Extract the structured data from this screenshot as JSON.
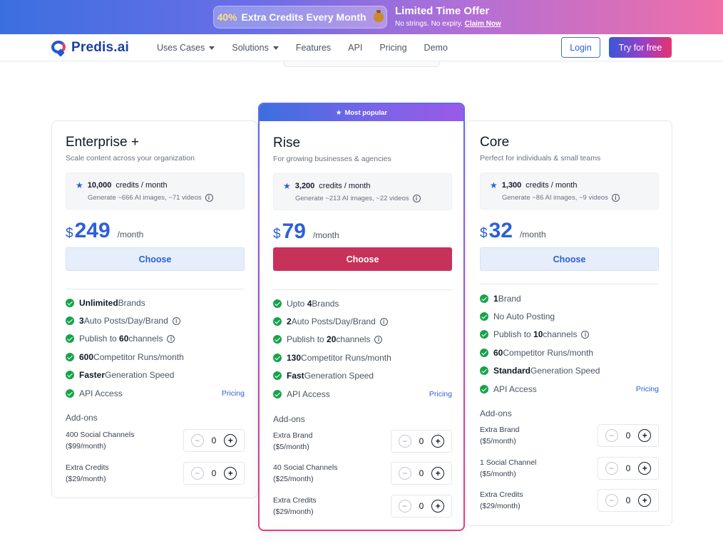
{
  "promo": {
    "highlight": "40%",
    "offer": "Extra Credits  Every Month",
    "title": "Limited Time Offer",
    "subtitle": "No strings. No expiry.",
    "cta": "Claim Now"
  },
  "nav": {
    "brand": "Predis.ai",
    "links": [
      "Uses Cases",
      "Solutions",
      "Features",
      "API",
      "Pricing",
      "Demo"
    ],
    "login": "Login",
    "try": "Try for free"
  },
  "plans": [
    {
      "name": "Enterprise +",
      "desc": "Scale content across your organization",
      "credits": "10,000",
      "credits_unit": "credits / month",
      "credits_sub": "Generate ~666 AI images, ~71 videos",
      "currency": "$",
      "price": "249",
      "per": "/month",
      "choose": "Choose",
      "features": [
        {
          "bold": "Unlimited",
          "rest": " Brands"
        },
        {
          "bold": "3",
          "rest": " Auto Posts/Day/Brand"
        },
        {
          "pre": "Publish to ",
          "bold": "60",
          "rest": " channels"
        },
        {
          "bold": "600",
          "rest": " Competitor Runs/month"
        },
        {
          "bold": "Faster",
          "rest": " Generation Speed"
        },
        {
          "pre": "API Access",
          "link": "Pricing"
        }
      ],
      "addons_title": "Add-ons",
      "addons": [
        {
          "label": "400 Social Channels",
          "price": "($99/month)",
          "value": "0"
        },
        {
          "label": "Extra Credits",
          "price": "($29/month)",
          "value": "0"
        }
      ]
    },
    {
      "badge": "Most popular",
      "name": "Rise",
      "desc": "For growing businesses & agencies",
      "credits": "3,200",
      "credits_unit": "credits / month",
      "credits_sub": "Generate ~213 AI images, ~22 videos",
      "currency": "$",
      "price": "79",
      "per": "/month",
      "choose": "Choose",
      "features": [
        {
          "pre": "Upto ",
          "bold": "4",
          "rest": " Brands"
        },
        {
          "bold": "2",
          "rest": " Auto Posts/Day/Brand"
        },
        {
          "pre": "Publish to ",
          "bold": "20",
          "rest": " channels"
        },
        {
          "bold": "130",
          "rest": " Competitor Runs/month"
        },
        {
          "bold": "Fast",
          "rest": " Generation Speed"
        },
        {
          "pre": "API Access",
          "link": "Pricing"
        }
      ],
      "addons_title": "Add-ons",
      "addons": [
        {
          "label": "Extra Brand",
          "price": "($5/month)",
          "value": "0"
        },
        {
          "label": "40 Social Channels",
          "price": "($25/month)",
          "value": "0"
        },
        {
          "label": "Extra Credits",
          "price": "($29/month)",
          "value": "0"
        }
      ]
    },
    {
      "name": "Core",
      "desc": "Perfect for individuals & small teams",
      "credits": "1,300",
      "credits_unit": "credits / month",
      "credits_sub": "Generate ~86 AI images, ~9 videos",
      "currency": "$",
      "price": "32",
      "per": "/month",
      "choose": "Choose",
      "features": [
        {
          "bold": "1",
          "rest": " Brand"
        },
        {
          "pre": "No Auto Posting"
        },
        {
          "pre": "Publish to ",
          "bold": "10",
          "rest": " channels"
        },
        {
          "bold": "60",
          "rest": " Competitor Runs/month"
        },
        {
          "bold": "Standard",
          "rest": " Generation Speed"
        },
        {
          "pre": "API Access",
          "link": "Pricing"
        }
      ],
      "addons_title": "Add-ons",
      "addons": [
        {
          "label": "Extra Brand",
          "price": "($5/month)",
          "value": "0"
        },
        {
          "label": "1 Social Channel",
          "price": "($5/month)",
          "value": "0"
        },
        {
          "label": "Extra Credits",
          "price": "($29/month)",
          "value": "0"
        }
      ]
    }
  ]
}
